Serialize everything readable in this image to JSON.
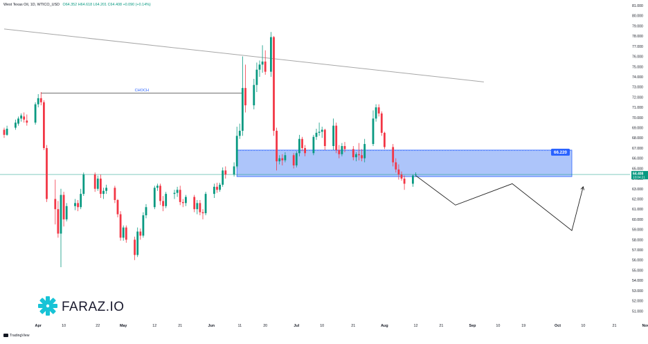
{
  "header": {
    "symbol": "West Texas Oil, 1D, WTICO_USD",
    "open_label": "O",
    "open": "64.352",
    "high_label": "H",
    "high": "64.618",
    "low_label": "L",
    "low": "64.201",
    "close_label": "C",
    "close": "64.408",
    "change": "+0.090 (+0.14%)"
  },
  "footer": {
    "brand": "TradingView"
  },
  "watermark": {
    "text": "FARAZ.IO"
  },
  "colors": {
    "up": "#089981",
    "down": "#f23645",
    "zone_fill": "#5b8cf5",
    "zone_border": "#2962ff",
    "tag_bg": "#2962ff",
    "price_tag": "#089981",
    "choch_line": "#707070",
    "trend_line": "#a6a6a6",
    "projection": "#1e1e1e",
    "logo": "#17c3d6"
  },
  "chart_data": {
    "type": "candlestick",
    "title": "",
    "y_axis": {
      "position": "right",
      "min": 50,
      "max": 81,
      "step": 1,
      "label_every": 1,
      "ticks": [
        "81.000",
        "80.000",
        "79.000",
        "78.000",
        "77.000",
        "76.000",
        "75.000",
        "74.000",
        "73.000",
        "72.000",
        "71.000",
        "70.000",
        "69.000",
        "68.000",
        "67.000",
        "66.000",
        "65.000",
        "64.000",
        "63.000",
        "62.000",
        "61.000",
        "60.000",
        "59.000",
        "58.000",
        "57.000",
        "56.000",
        "55.000",
        "54.000",
        "53.000",
        "52.000",
        "51.000"
      ]
    },
    "x_axis": {
      "start_date": "2025-03-20",
      "labels": [
        {
          "date": "2025-04-01",
          "text": "Apr",
          "bold": true
        },
        {
          "date": "2025-04-10",
          "text": "10"
        },
        {
          "date": "2025-04-22",
          "text": "22"
        },
        {
          "date": "2025-05-01",
          "text": "May",
          "bold": true
        },
        {
          "date": "2025-05-12",
          "text": "12"
        },
        {
          "date": "2025-05-21",
          "text": "21"
        },
        {
          "date": "2025-06-01",
          "text": "Jun",
          "bold": true
        },
        {
          "date": "2025-06-11",
          "text": "11"
        },
        {
          "date": "2025-06-20",
          "text": "20"
        },
        {
          "date": "2025-07-01",
          "text": "Jul",
          "bold": true
        },
        {
          "date": "2025-07-10",
          "text": "10"
        },
        {
          "date": "2025-07-21",
          "text": "21"
        },
        {
          "date": "2025-08-01",
          "text": "Aug",
          "bold": true
        },
        {
          "date": "2025-08-12",
          "text": "12"
        },
        {
          "date": "2025-08-21",
          "text": "21"
        },
        {
          "date": "2025-09-01",
          "text": "Sep",
          "bold": true
        },
        {
          "date": "2025-09-10",
          "text": "10"
        },
        {
          "date": "2025-09-19",
          "text": "19"
        },
        {
          "date": "2025-10-01",
          "text": "Oct",
          "bold": true
        },
        {
          "date": "2025-10-10",
          "text": "10"
        },
        {
          "date": "2025-10-21",
          "text": "21"
        },
        {
          "date": "2025-11-01",
          "text": "Nov",
          "bold": true
        }
      ]
    },
    "candles": [
      {
        "date": "2025-03-20",
        "o": 68.8,
        "h": 69.0,
        "l": 68.0,
        "c": 68.3
      },
      {
        "date": "2025-03-21",
        "o": 68.3,
        "h": 69.2,
        "l": 68.2,
        "c": 68.9
      },
      {
        "date": "2025-03-24",
        "o": 69.0,
        "h": 69.8,
        "l": 68.8,
        "c": 69.5
      },
      {
        "date": "2025-03-25",
        "o": 69.4,
        "h": 70.1,
        "l": 69.2,
        "c": 69.9
      },
      {
        "date": "2025-03-26",
        "o": 69.9,
        "h": 70.4,
        "l": 69.6,
        "c": 70.2
      },
      {
        "date": "2025-03-27",
        "o": 70.1,
        "h": 70.5,
        "l": 69.5,
        "c": 69.8
      },
      {
        "date": "2025-03-28",
        "o": 69.7,
        "h": 70.3,
        "l": 69.2,
        "c": 69.5
      },
      {
        "date": "2025-03-31",
        "o": 69.5,
        "h": 71.5,
        "l": 69.3,
        "c": 71.3
      },
      {
        "date": "2025-04-01",
        "o": 71.3,
        "h": 72.3,
        "l": 71.0,
        "c": 71.9
      },
      {
        "date": "2025-04-02",
        "o": 71.9,
        "h": 72.5,
        "l": 71.2,
        "c": 71.5
      },
      {
        "date": "2025-04-03",
        "o": 71.5,
        "h": 71.7,
        "l": 66.8,
        "c": 67.0
      },
      {
        "date": "2025-04-04",
        "o": 67.0,
        "h": 67.3,
        "l": 61.7,
        "c": 62.0
      },
      {
        "date": "2025-04-07",
        "o": 62.0,
        "h": 63.9,
        "l": 59.5,
        "c": 61.0
      },
      {
        "date": "2025-04-08",
        "o": 61.0,
        "h": 61.8,
        "l": 58.2,
        "c": 58.6
      },
      {
        "date": "2025-04-09",
        "o": 58.6,
        "h": 63.0,
        "l": 55.3,
        "c": 62.4
      },
      {
        "date": "2025-04-10",
        "o": 62.4,
        "h": 62.7,
        "l": 59.3,
        "c": 60.0
      },
      {
        "date": "2025-04-11",
        "o": 60.0,
        "h": 61.6,
        "l": 59.8,
        "c": 61.3
      },
      {
        "date": "2025-04-14",
        "o": 61.3,
        "h": 62.0,
        "l": 60.9,
        "c": 61.6
      },
      {
        "date": "2025-04-15",
        "o": 61.6,
        "h": 61.9,
        "l": 60.8,
        "c": 61.2
      },
      {
        "date": "2025-04-16",
        "o": 61.2,
        "h": 63.0,
        "l": 61.0,
        "c": 62.5
      },
      {
        "date": "2025-04-17",
        "o": 62.5,
        "h": 64.6,
        "l": 62.3,
        "c": 64.4
      },
      {
        "date": "2025-04-21",
        "o": 64.4,
        "h": 64.6,
        "l": 62.7,
        "c": 63.0
      },
      {
        "date": "2025-04-22",
        "o": 63.0,
        "h": 64.3,
        "l": 62.8,
        "c": 64.0
      },
      {
        "date": "2025-04-23",
        "o": 64.0,
        "h": 64.4,
        "l": 62.1,
        "c": 62.5
      },
      {
        "date": "2025-04-24",
        "o": 62.5,
        "h": 63.1,
        "l": 62.0,
        "c": 62.8
      },
      {
        "date": "2025-04-25",
        "o": 62.8,
        "h": 63.4,
        "l": 62.5,
        "c": 63.1
      },
      {
        "date": "2025-04-28",
        "o": 63.1,
        "h": 63.3,
        "l": 61.6,
        "c": 61.9
      },
      {
        "date": "2025-04-29",
        "o": 61.9,
        "h": 62.0,
        "l": 60.2,
        "c": 60.5
      },
      {
        "date": "2025-04-30",
        "o": 60.5,
        "h": 60.8,
        "l": 57.9,
        "c": 58.2
      },
      {
        "date": "2025-05-01",
        "o": 58.2,
        "h": 59.4,
        "l": 57.9,
        "c": 59.2
      },
      {
        "date": "2025-05-02",
        "o": 59.2,
        "h": 59.4,
        "l": 57.7,
        "c": 58.0
      },
      {
        "date": "2025-05-05",
        "o": 58.0,
        "h": 58.3,
        "l": 56.0,
        "c": 56.5
      },
      {
        "date": "2025-05-06",
        "o": 56.5,
        "h": 59.2,
        "l": 56.3,
        "c": 58.8
      },
      {
        "date": "2025-05-07",
        "o": 58.8,
        "h": 59.1,
        "l": 58.0,
        "c": 58.4
      },
      {
        "date": "2025-05-08",
        "o": 58.4,
        "h": 60.7,
        "l": 58.2,
        "c": 60.4
      },
      {
        "date": "2025-05-09",
        "o": 60.4,
        "h": 61.5,
        "l": 60.1,
        "c": 61.2
      },
      {
        "date": "2025-05-12",
        "o": 61.2,
        "h": 63.3,
        "l": 61.0,
        "c": 63.1
      },
      {
        "date": "2025-05-13",
        "o": 63.1,
        "h": 63.5,
        "l": 62.8,
        "c": 63.3
      },
      {
        "date": "2025-05-14",
        "o": 63.3,
        "h": 63.5,
        "l": 61.4,
        "c": 61.8
      },
      {
        "date": "2025-05-15",
        "o": 61.8,
        "h": 62.3,
        "l": 60.8,
        "c": 61.3
      },
      {
        "date": "2025-05-16",
        "o": 61.3,
        "h": 62.7,
        "l": 61.1,
        "c": 62.5
      },
      {
        "date": "2025-05-19",
        "o": 62.5,
        "h": 62.9,
        "l": 62.0,
        "c": 62.6
      },
      {
        "date": "2025-05-20",
        "o": 62.6,
        "h": 63.2,
        "l": 62.2,
        "c": 62.9
      },
      {
        "date": "2025-05-21",
        "o": 62.9,
        "h": 63.3,
        "l": 61.4,
        "c": 61.7
      },
      {
        "date": "2025-05-22",
        "o": 61.7,
        "h": 62.0,
        "l": 61.2,
        "c": 61.6
      },
      {
        "date": "2025-05-23",
        "o": 61.6,
        "h": 62.4,
        "l": 61.3,
        "c": 62.2
      },
      {
        "date": "2025-05-26",
        "o": 62.2,
        "h": 62.4,
        "l": 60.7,
        "c": 61.0
      },
      {
        "date": "2025-05-27",
        "o": 61.0,
        "h": 61.9,
        "l": 60.5,
        "c": 61.6
      },
      {
        "date": "2025-05-28",
        "o": 61.6,
        "h": 61.9,
        "l": 60.4,
        "c": 60.7
      },
      {
        "date": "2025-05-29",
        "o": 60.7,
        "h": 61.0,
        "l": 60.0,
        "c": 60.6
      },
      {
        "date": "2025-05-30",
        "o": 60.6,
        "h": 62.7,
        "l": 60.4,
        "c": 62.5
      },
      {
        "date": "2025-06-02",
        "o": 62.5,
        "h": 63.5,
        "l": 62.1,
        "c": 63.2
      },
      {
        "date": "2025-06-03",
        "o": 63.2,
        "h": 63.6,
        "l": 62.6,
        "c": 62.9
      },
      {
        "date": "2025-06-04",
        "o": 62.9,
        "h": 63.6,
        "l": 62.7,
        "c": 63.4
      },
      {
        "date": "2025-06-05",
        "o": 63.4,
        "h": 65.1,
        "l": 63.2,
        "c": 64.8
      },
      {
        "date": "2025-06-06",
        "o": 64.8,
        "h": 65.2,
        "l": 64.0,
        "c": 64.4
      },
      {
        "date": "2025-06-09",
        "o": 64.4,
        "h": 65.6,
        "l": 64.2,
        "c": 65.2
      },
      {
        "date": "2025-06-10",
        "o": 65.2,
        "h": 69.1,
        "l": 65.0,
        "c": 68.2
      },
      {
        "date": "2025-06-11",
        "o": 68.2,
        "h": 69.4,
        "l": 67.9,
        "c": 68.7
      },
      {
        "date": "2025-06-12",
        "o": 68.7,
        "h": 76.0,
        "l": 68.2,
        "c": 72.9
      },
      {
        "date": "2025-06-13",
        "o": 72.9,
        "h": 75.2,
        "l": 70.5,
        "c": 71.2
      },
      {
        "date": "2025-06-16",
        "o": 71.2,
        "h": 73.8,
        "l": 70.8,
        "c": 73.2
      },
      {
        "date": "2025-06-17",
        "o": 73.2,
        "h": 75.4,
        "l": 72.5,
        "c": 74.7
      },
      {
        "date": "2025-06-18",
        "o": 74.7,
        "h": 75.6,
        "l": 74.0,
        "c": 75.2
      },
      {
        "date": "2025-06-19",
        "o": 75.2,
        "h": 77.1,
        "l": 74.4,
        "c": 75.5
      },
      {
        "date": "2025-06-20",
        "o": 75.5,
        "h": 76.6,
        "l": 74.2,
        "c": 74.5
      },
      {
        "date": "2025-06-22",
        "o": 74.5,
        "h": 78.4,
        "l": 74.0,
        "c": 77.9
      },
      {
        "date": "2025-06-23",
        "o": 77.9,
        "h": 78.0,
        "l": 68.2,
        "c": 68.7
      },
      {
        "date": "2025-06-24",
        "o": 68.7,
        "h": 69.0,
        "l": 64.8,
        "c": 65.7
      },
      {
        "date": "2025-06-25",
        "o": 65.7,
        "h": 66.3,
        "l": 65.4,
        "c": 66.0
      },
      {
        "date": "2025-06-26",
        "o": 66.0,
        "h": 66.4,
        "l": 65.3,
        "c": 65.8
      },
      {
        "date": "2025-06-27",
        "o": 65.8,
        "h": 66.6,
        "l": 65.6,
        "c": 66.3
      },
      {
        "date": "2025-06-30",
        "o": 66.3,
        "h": 66.5,
        "l": 65.0,
        "c": 65.3
      },
      {
        "date": "2025-07-01",
        "o": 65.3,
        "h": 66.7,
        "l": 65.1,
        "c": 66.5
      },
      {
        "date": "2025-07-02",
        "o": 66.5,
        "h": 68.3,
        "l": 66.2,
        "c": 67.9
      },
      {
        "date": "2025-07-03",
        "o": 67.9,
        "h": 68.1,
        "l": 66.7,
        "c": 67.0
      },
      {
        "date": "2025-07-04",
        "o": 67.0,
        "h": 67.3,
        "l": 66.2,
        "c": 66.5
      },
      {
        "date": "2025-07-07",
        "o": 66.5,
        "h": 68.3,
        "l": 66.3,
        "c": 68.1
      },
      {
        "date": "2025-07-08",
        "o": 68.1,
        "h": 68.9,
        "l": 67.8,
        "c": 68.5
      },
      {
        "date": "2025-07-09",
        "o": 68.5,
        "h": 69.5,
        "l": 68.2,
        "c": 68.6
      },
      {
        "date": "2025-07-10",
        "o": 68.6,
        "h": 69.1,
        "l": 68.0,
        "c": 68.8
      },
      {
        "date": "2025-07-11",
        "o": 68.8,
        "h": 68.9,
        "l": 66.8,
        "c": 67.2
      },
      {
        "date": "2025-07-14",
        "o": 67.2,
        "h": 69.9,
        "l": 66.8,
        "c": 69.2
      },
      {
        "date": "2025-07-15",
        "o": 69.2,
        "h": 69.5,
        "l": 66.5,
        "c": 66.8
      },
      {
        "date": "2025-07-16",
        "o": 66.8,
        "h": 67.3,
        "l": 66.0,
        "c": 66.4
      },
      {
        "date": "2025-07-17",
        "o": 66.4,
        "h": 67.5,
        "l": 66.2,
        "c": 67.2
      },
      {
        "date": "2025-07-18",
        "o": 67.2,
        "h": 67.6,
        "l": 66.6,
        "c": 66.9
      },
      {
        "date": "2025-07-21",
        "o": 66.9,
        "h": 67.2,
        "l": 65.8,
        "c": 66.1
      },
      {
        "date": "2025-07-22",
        "o": 66.1,
        "h": 66.6,
        "l": 65.7,
        "c": 66.4
      },
      {
        "date": "2025-07-23",
        "o": 66.4,
        "h": 67.5,
        "l": 65.8,
        "c": 66.3
      },
      {
        "date": "2025-07-24",
        "o": 66.3,
        "h": 66.9,
        "l": 65.7,
        "c": 66.0
      },
      {
        "date": "2025-07-25",
        "o": 66.0,
        "h": 67.9,
        "l": 65.6,
        "c": 67.4
      },
      {
        "date": "2025-07-28",
        "o": 67.4,
        "h": 70.7,
        "l": 67.2,
        "c": 69.9
      },
      {
        "date": "2025-07-29",
        "o": 69.9,
        "h": 71.3,
        "l": 69.6,
        "c": 71.0
      },
      {
        "date": "2025-07-30",
        "o": 71.0,
        "h": 71.3,
        "l": 70.1,
        "c": 70.4
      },
      {
        "date": "2025-07-31",
        "o": 70.4,
        "h": 70.6,
        "l": 68.2,
        "c": 68.5
      },
      {
        "date": "2025-08-01",
        "o": 68.5,
        "h": 68.6,
        "l": 66.9,
        "c": 67.1
      },
      {
        "date": "2025-08-04",
        "o": 67.1,
        "h": 67.4,
        "l": 65.2,
        "c": 65.6
      },
      {
        "date": "2025-08-05",
        "o": 65.6,
        "h": 66.0,
        "l": 64.6,
        "c": 64.9
      },
      {
        "date": "2025-08-06",
        "o": 64.9,
        "h": 65.4,
        "l": 63.9,
        "c": 64.4
      },
      {
        "date": "2025-08-07",
        "o": 64.4,
        "h": 64.7,
        "l": 63.8,
        "c": 64.0
      },
      {
        "date": "2025-08-08",
        "o": 64.0,
        "h": 64.3,
        "l": 62.9,
        "c": 63.5
      },
      {
        "date": "2025-08-11",
        "o": 63.5,
        "h": 64.4,
        "l": 63.2,
        "c": 64.3
      },
      {
        "date": "2025-08-12",
        "o": 64.352,
        "h": 64.618,
        "l": 64.201,
        "c": 64.408
      }
    ],
    "annotations": {
      "choch": {
        "label": "CHOCH",
        "price": 72.4,
        "start": "2025-04-02",
        "end": "2025-06-12"
      },
      "trendline": {
        "start_date": "2025-03-20",
        "start_price": 78.7,
        "end_date": "2025-09-05",
        "end_price": 73.5
      },
      "zone": {
        "top": 66.8,
        "bottom": 64.2,
        "start": "2025-06-10",
        "end": "2025-10-06",
        "label": "66.220"
      },
      "current_price": {
        "value": 64.408,
        "label": "64.408",
        "countdown": "13:04:21"
      },
      "projection": [
        {
          "date": "2025-08-12",
          "price": 64.3
        },
        {
          "date": "2025-08-26",
          "price": 61.4
        },
        {
          "date": "2025-09-15",
          "price": 63.5
        },
        {
          "date": "2025-10-06",
          "price": 58.9
        },
        {
          "date": "2025-10-10",
          "price": 63.2
        }
      ]
    }
  }
}
